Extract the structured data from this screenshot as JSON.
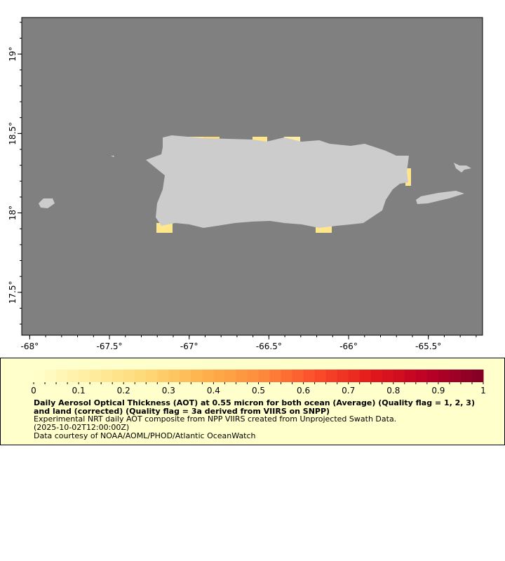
{
  "map": {
    "lon_range": [
      -68.05,
      -65.16
    ],
    "lat_range": [
      17.23,
      19.23
    ],
    "lon_ticks": [
      -68,
      -67.5,
      -67,
      -66.5,
      -66,
      -65.5
    ],
    "lon_tick_labels": [
      "-68°",
      "-67.5°",
      "-67°",
      "-66.5°",
      "-66°",
      "-65.5°"
    ],
    "lat_ticks": [
      19,
      18.5,
      18,
      17.5
    ],
    "lat_tick_labels": [
      "19°",
      "18.5°",
      "18°",
      "17.5°"
    ],
    "colors": {
      "ocean_nodata": "#808080",
      "land": "#cccccc",
      "frame": "#000000"
    }
  },
  "legend": {
    "colorbar_range": [
      0,
      1
    ],
    "colorbar_ticks": [
      "0",
      "0.1",
      "0.2",
      "0.3",
      "0.4",
      "0.5",
      "0.6",
      "0.7",
      "0.8",
      "0.9",
      "1"
    ],
    "colormap_stops": [
      "#ffffcc",
      "#ffeda0",
      "#fed976",
      "#feb24c",
      "#fd8d3c",
      "#fc4e2a",
      "#e31a1c",
      "#bd0026",
      "#800026"
    ],
    "title": "Daily Aerosol Optical Thickness (AOT) at 0.55 micron for both ocean (Average) (Quality flag = 1, 2, 3) and land (corrected) (Quality flag = 3a derived from VIIRS on SNPP)",
    "line1": "Experimental NRT daily AOT composite from NPP VIIRS created from Unprojected Swath Data.",
    "line2": "(2025-10-02T12:00:00Z)",
    "line3": "Data courtesy of NOAA/AOML/PHOD/Atlantic OceanWatch",
    "background": "#ffffcc"
  }
}
